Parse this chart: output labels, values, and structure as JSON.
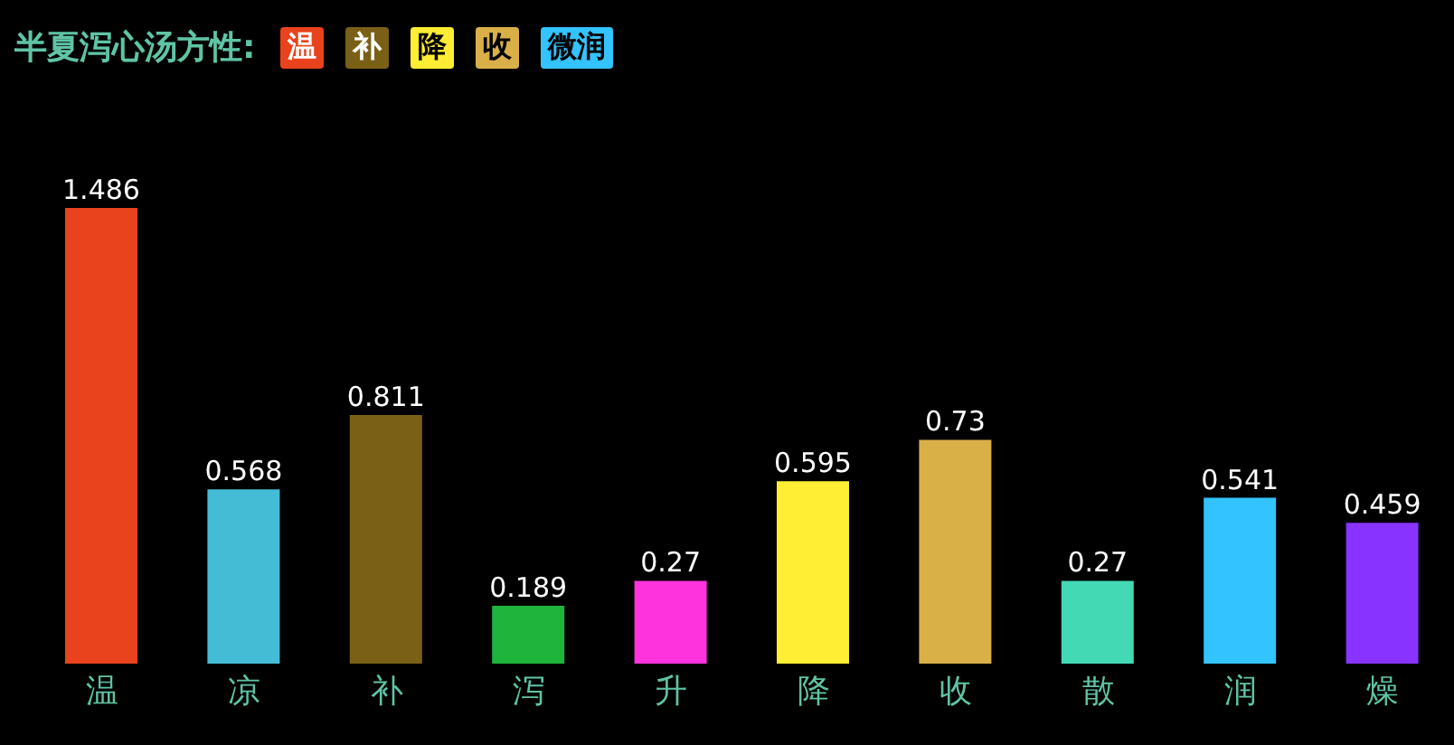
{
  "chart_data": {
    "type": "bar",
    "title": "半夏泻心汤方性:",
    "annotations": [
      "温",
      "补",
      "降",
      "收",
      "微润"
    ],
    "categories": [
      "温",
      "凉",
      "补",
      "泻",
      "升",
      "降",
      "收",
      "散",
      "润",
      "燥"
    ],
    "values": [
      1.486,
      0.568,
      0.811,
      0.189,
      0.27,
      0.595,
      0.73,
      0.27,
      0.541,
      0.459
    ],
    "colors": [
      "#e8431c",
      "#45bcd6",
      "#7a5f16",
      "#1fb53c",
      "#ff33dd",
      "#ffee33",
      "#d9b048",
      "#44d9b5",
      "#33c3ff",
      "#8833ff"
    ],
    "data_labels": true
  }
}
